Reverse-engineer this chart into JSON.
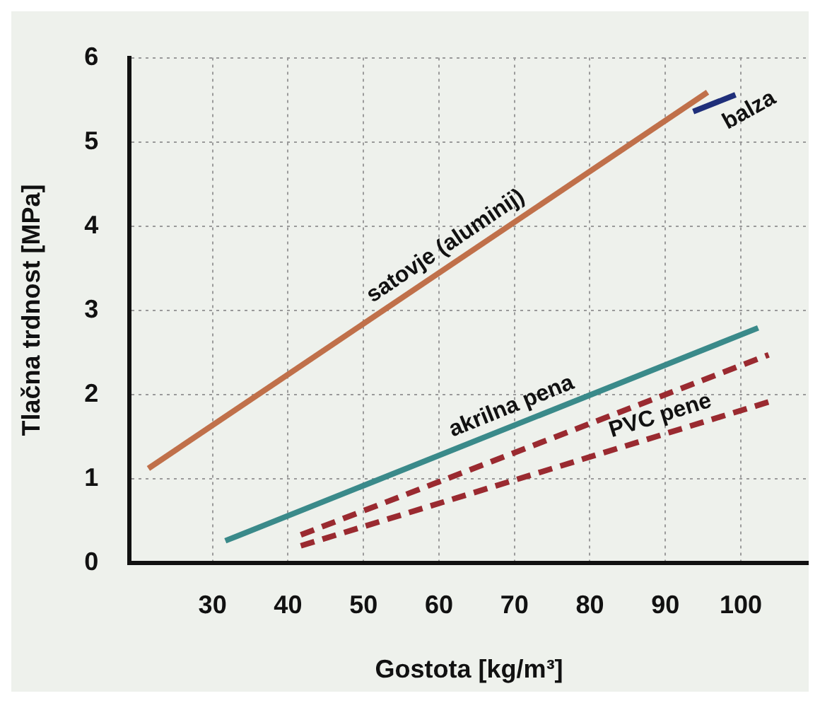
{
  "chart_data": {
    "type": "line",
    "xlabel": "Gostota [kg/m³]",
    "ylabel": "Tlačna trdnost [MPa]",
    "xlim": [
      19,
      109
    ],
    "xticks": [
      30,
      40,
      50,
      60,
      70,
      80,
      90,
      100
    ],
    "ylim": [
      0,
      6
    ],
    "yticks": [
      0,
      1,
      2,
      3,
      4,
      5,
      6
    ],
    "grid": true,
    "legend": false,
    "marker": "none",
    "series": [
      {
        "name": "satovje (aluminij)",
        "color": "#c0704a",
        "x": [
          21.5,
          95.6
        ],
        "values": [
          1.12,
          5.59
        ],
        "line_style": "solid"
      },
      {
        "name": "balza",
        "color": "#1f2f7a",
        "x": [
          93.7,
          99.3
        ],
        "values": [
          5.36,
          5.56
        ],
        "line_style": "solid"
      },
      {
        "name": "akrilna pena",
        "color": "#3a8a8a",
        "x": [
          31.7,
          102.3
        ],
        "values": [
          0.26,
          2.79
        ],
        "line_style": "solid"
      },
      {
        "color": "#9a2a30",
        "x": [
          41.7,
          103.7
        ],
        "values": [
          0.33,
          2.47
        ],
        "line_style": "dashed"
      },
      {
        "name": "PVC pene",
        "color": "#9a2a30",
        "x": [
          41.7,
          103.7
        ],
        "values": [
          0.2,
          1.91
        ],
        "line_style": "dashed"
      }
    ]
  }
}
